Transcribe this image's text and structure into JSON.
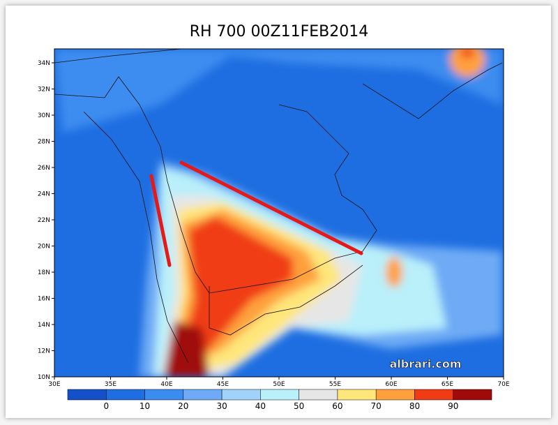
{
  "title": "RH 700 00Z11FEB2014",
  "lat_labels": [
    "34N",
    "32N",
    "30N",
    "28N",
    "26N",
    "24N",
    "22N",
    "20N",
    "18N",
    "16N",
    "14N",
    "12N",
    "10N"
  ],
  "lon_labels": [
    "30E",
    "35E",
    "40E",
    "45E",
    "50E",
    "55E",
    "60E",
    "65E",
    "70E"
  ],
  "colorbar": {
    "ticks": [
      0,
      10,
      20,
      30,
      40,
      50,
      60,
      70,
      80,
      90
    ],
    "colors": [
      "#1450c8",
      "#1e6ee1",
      "#3c8cf0",
      "#6eaaf5",
      "#a0d2fa",
      "#b9f0fa",
      "#e6e6e6",
      "#ffe67a",
      "#ffa03c",
      "#f03c14",
      "#a00a0a"
    ]
  },
  "watermark": "albrari.com"
}
